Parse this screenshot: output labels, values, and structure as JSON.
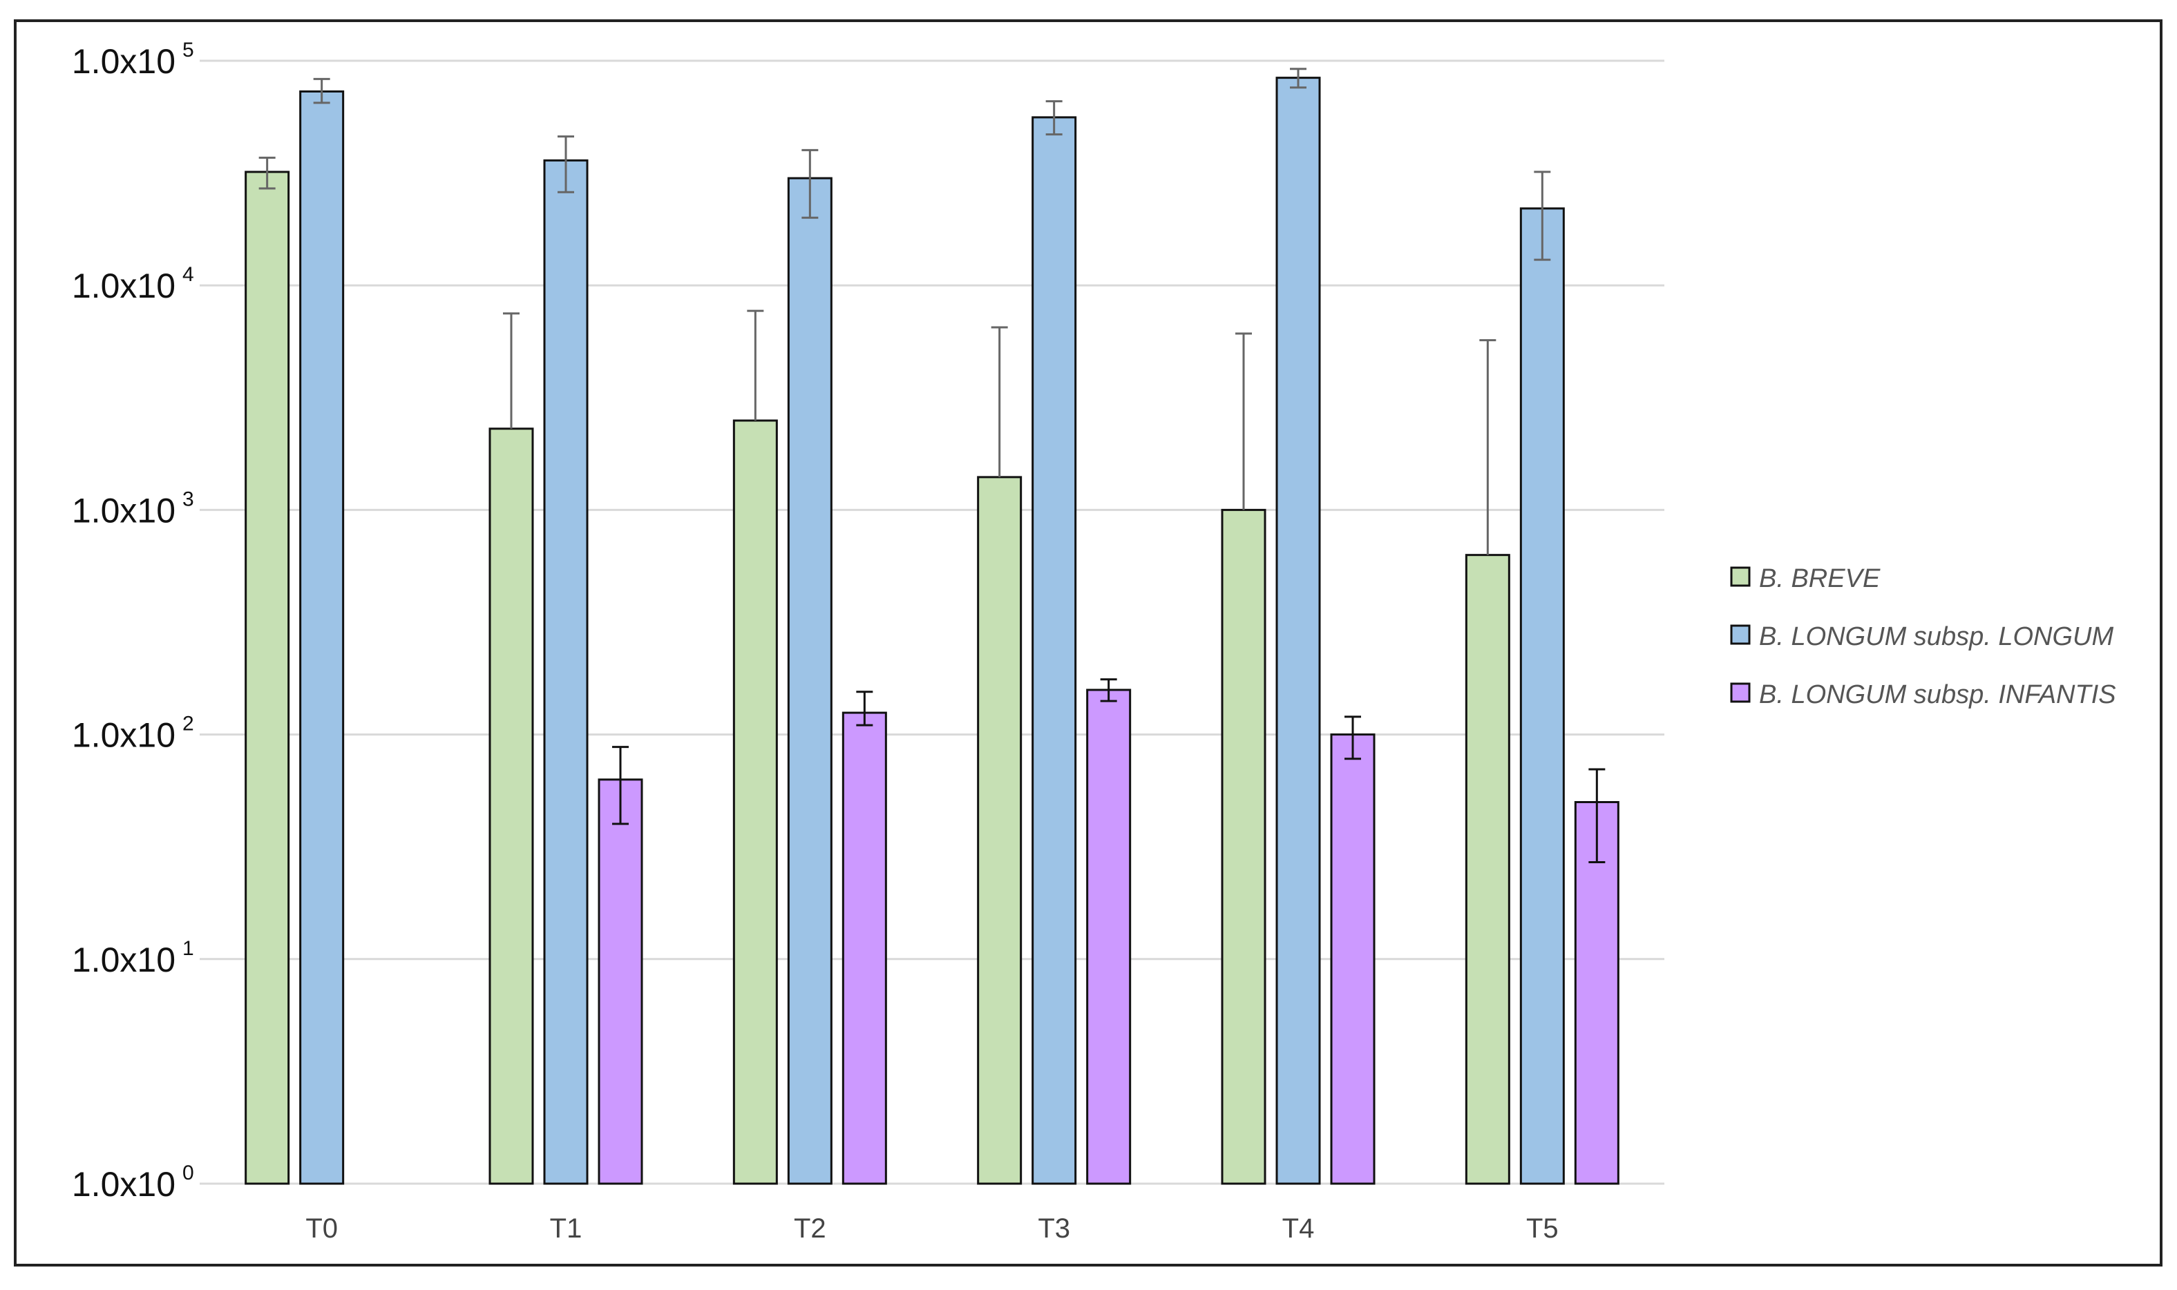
{
  "chart_data": {
    "type": "bar",
    "title": "",
    "xlabel": "",
    "ylabel": "",
    "y_scale": "log",
    "ylim": [
      1,
      100000
    ],
    "grid": true,
    "legend_placement": "right",
    "y_ticks": [
      {
        "value": 1,
        "base": "1.0x10",
        "exp": "0"
      },
      {
        "value": 10,
        "base": "1.0x10",
        "exp": "1"
      },
      {
        "value": 100,
        "base": "1.0x10",
        "exp": "2"
      },
      {
        "value": 1000,
        "base": "1.0x10",
        "exp": "3"
      },
      {
        "value": 10000,
        "base": "1.0x10",
        "exp": "4"
      },
      {
        "value": 100000,
        "base": "1.0x10",
        "exp": "5"
      }
    ],
    "categories": [
      "T0",
      "T1",
      "T2",
      "T3",
      "T4",
      "T5"
    ],
    "series": [
      {
        "name": "B. BREVE",
        "color": "#c6e0b4",
        "values": [
          32000,
          2300,
          2500,
          1400,
          1000,
          630
        ],
        "err_low": [
          27000,
          null,
          null,
          null,
          null,
          null
        ],
        "err_high": [
          37000,
          7500,
          7700,
          6500,
          6100,
          5700
        ],
        "err_color": "#666666"
      },
      {
        "name": "B. LONGUM subsp. LONGUM",
        "color": "#9dc3e6",
        "values": [
          73000,
          36000,
          30000,
          56000,
          84000,
          22000
        ],
        "err_low": [
          65000,
          26000,
          20000,
          47000,
          76000,
          13000
        ],
        "err_high": [
          83000,
          46000,
          40000,
          66000,
          92000,
          32000
        ],
        "err_color": "#666666"
      },
      {
        "name": "B. LONGUM subsp. INFANTIS",
        "color": "#cc99ff",
        "values": [
          null,
          63,
          125,
          158,
          100,
          50
        ],
        "err_low": [
          null,
          40,
          110,
          141,
          78,
          27
        ],
        "err_high": [
          null,
          88,
          155,
          176,
          120,
          70
        ],
        "err_color": "#111111"
      }
    ]
  }
}
